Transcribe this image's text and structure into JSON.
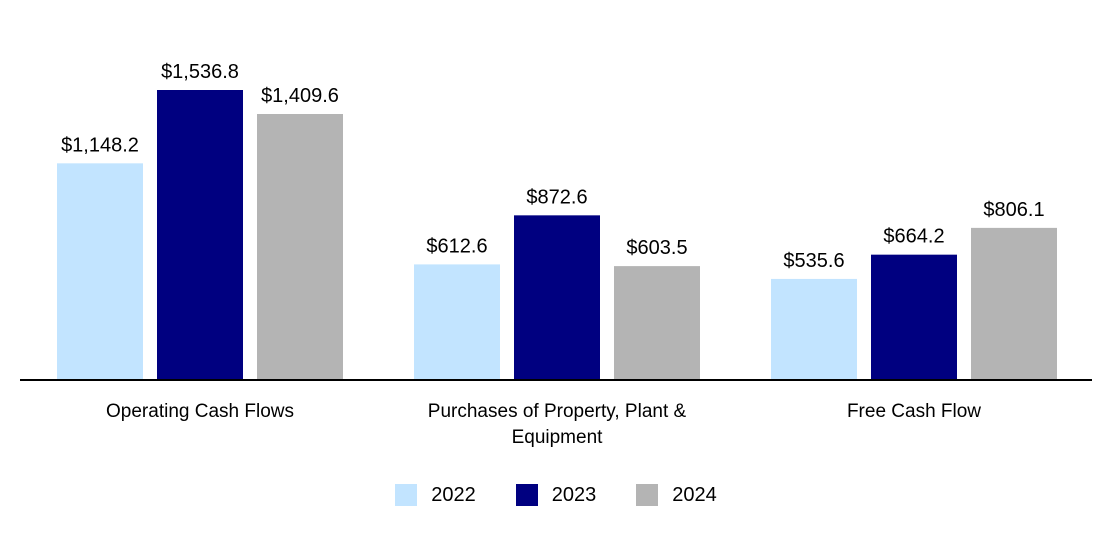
{
  "chart_data": {
    "type": "bar",
    "title": "",
    "xlabel": "",
    "ylabel": "",
    "ylim": [
      0,
      1650
    ],
    "grid": false,
    "legend_position": "bottom-center",
    "categories": [
      [
        "Operating Cash Flows"
      ],
      [
        "Purchases of Property, Plant &",
        "Equipment"
      ],
      [
        "Free Cash Flow"
      ]
    ],
    "series": [
      {
        "name": "2022",
        "color": "#c2e4ff",
        "values": [
          1148.2,
          612.6,
          535.6
        ],
        "labels": [
          "$1,148.2",
          "$612.6",
          "$535.6"
        ]
      },
      {
        "name": "2023",
        "color": "#000080",
        "values": [
          1536.8,
          872.6,
          664.2
        ],
        "labels": [
          "$1,536.8",
          "$872.6",
          "$664.2"
        ]
      },
      {
        "name": "2024",
        "color": "#b4b4b4",
        "values": [
          1409.6,
          603.5,
          806.1
        ],
        "labels": [
          "$1,409.6",
          "$603.5",
          "$806.1"
        ]
      }
    ]
  }
}
